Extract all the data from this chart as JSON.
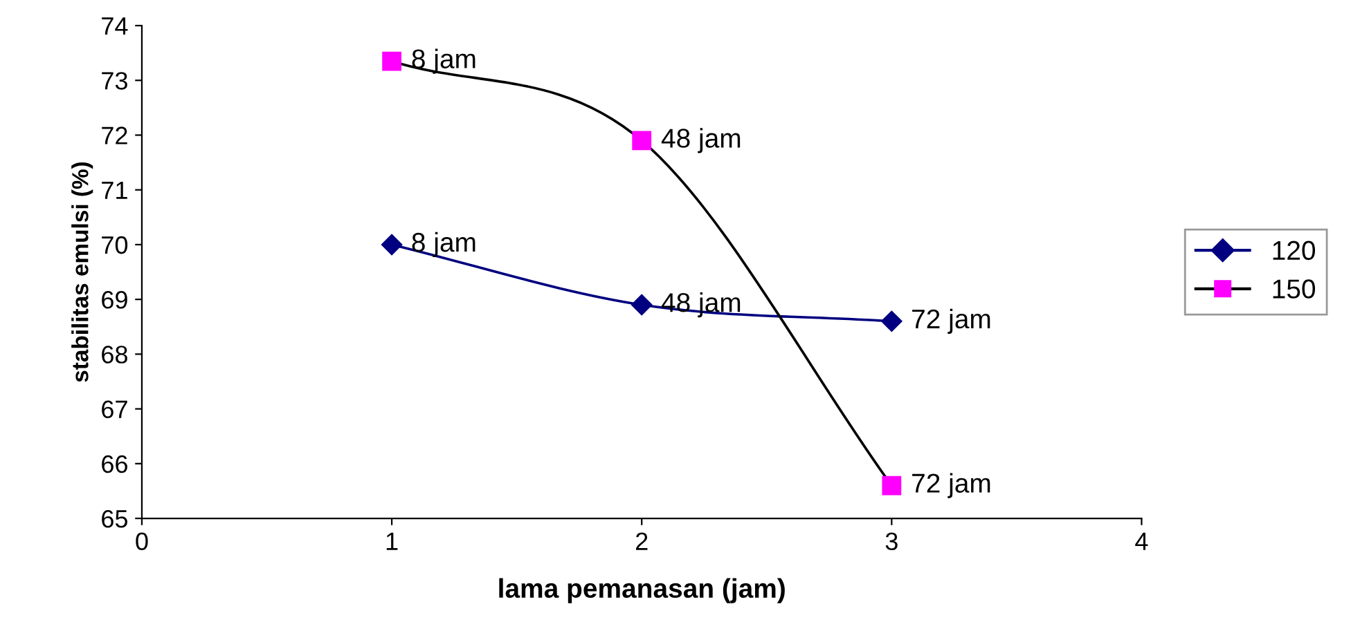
{
  "chart_data": {
    "type": "line",
    "xlabel": "lama pemanasan (jam)",
    "ylabel": "stabilitas emulsi (%)",
    "x": [
      1,
      2,
      3
    ],
    "series": [
      {
        "name": "120",
        "color": "#000080",
        "marker": "diamond",
        "values": [
          70.0,
          68.9,
          68.6
        ]
      },
      {
        "name": "150",
        "color": "#000000",
        "marker": "square",
        "values": [
          73.35,
          71.9,
          65.6
        ]
      }
    ],
    "annotations": [
      {
        "text": "8 jam",
        "x": 1,
        "y": 70.0
      },
      {
        "text": "48 jam",
        "x": 2,
        "y": 68.9
      },
      {
        "text": "72 jam",
        "x": 3,
        "y": 68.6
      },
      {
        "text": "8 jam",
        "x": 1,
        "y": 73.35
      },
      {
        "text": "48 jam",
        "x": 2,
        "y": 71.9
      },
      {
        "text": "72 jam",
        "x": 3,
        "y": 65.6
      }
    ],
    "xlim": [
      0,
      4
    ],
    "xticks": [
      0,
      1,
      2,
      3,
      4
    ],
    "ylim": [
      65,
      74
    ],
    "yticks": [
      65,
      66,
      67,
      68,
      69,
      70,
      71,
      72,
      73,
      74
    ],
    "grid": false,
    "legend": "right",
    "line_style": "solid"
  }
}
